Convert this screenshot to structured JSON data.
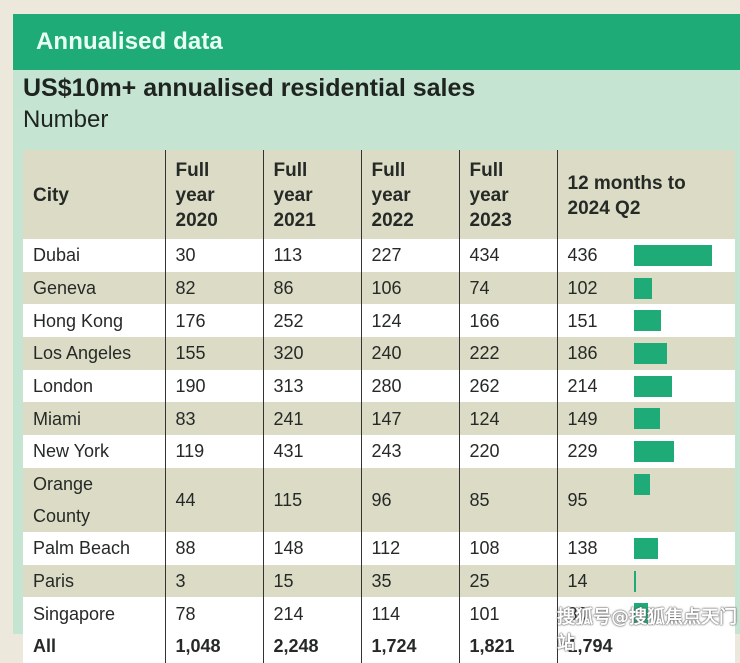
{
  "banner": {
    "title": "Annualised data"
  },
  "colors": {
    "accent": "#1fab78",
    "panel": "#c6e4d2",
    "header_row": "#dcdcc6"
  },
  "watermark": "搜狐号@搜狐焦点天门站",
  "chart_data": {
    "type": "table",
    "title": "US$10m+ annualised residential sales",
    "subtitle": "Number",
    "columns": [
      "City",
      "Full year 2020",
      "Full year 2021",
      "Full year 2022",
      "Full year 2023",
      "12 months to 2024 Q2"
    ],
    "header": [
      {
        "line1": "City",
        "line2": ""
      },
      {
        "line1": "Full year",
        "line2": "2020"
      },
      {
        "line1": "Full year",
        "line2": "2021"
      },
      {
        "line1": "Full year",
        "line2": "2022"
      },
      {
        "line1": "Full year",
        "line2": "2023"
      },
      {
        "line1": "12 months to",
        "line2": "2024 Q2"
      }
    ],
    "rows": [
      {
        "city": "Dubai",
        "y2020": "30",
        "y2021": "113",
        "y2022": "227",
        "y2023": "434",
        "q2_2024": "436",
        "bar_value": 436
      },
      {
        "city": "Geneva",
        "y2020": "82",
        "y2021": "86",
        "y2022": "106",
        "y2023": "74",
        "q2_2024": "102",
        "bar_value": 102
      },
      {
        "city": "Hong Kong",
        "y2020": "176",
        "y2021": "252",
        "y2022": "124",
        "y2023": "166",
        "q2_2024": "151",
        "bar_value": 151
      },
      {
        "city": "Los Angeles",
        "y2020": "155",
        "y2021": "320",
        "y2022": "240",
        "y2023": "222",
        "q2_2024": "186",
        "bar_value": 186
      },
      {
        "city": "London",
        "y2020": "190",
        "y2021": "313",
        "y2022": "280",
        "y2023": "262",
        "q2_2024": "214",
        "bar_value": 214
      },
      {
        "city": "Miami",
        "y2020": "83",
        "y2021": "241",
        "y2022": "147",
        "y2023": "124",
        "q2_2024": "149",
        "bar_value": 149
      },
      {
        "city": "New York",
        "y2020": "119",
        "y2021": "431",
        "y2022": "243",
        "y2023": "220",
        "q2_2024": "229",
        "bar_value": 229
      },
      {
        "city": "Orange County",
        "y2020": "44",
        "y2021": "115",
        "y2022": "96",
        "y2023": "85",
        "q2_2024": "95",
        "bar_value": 95
      },
      {
        "city": "Palm Beach",
        "y2020": "88",
        "y2021": "148",
        "y2022": "112",
        "y2023": "108",
        "q2_2024": "138",
        "bar_value": 138
      },
      {
        "city": "Paris",
        "y2020": "3",
        "y2021": "15",
        "y2022": "35",
        "y2023": "25",
        "q2_2024": "14",
        "bar_value": 14
      },
      {
        "city": "Singapore",
        "y2020": "78",
        "y2021": "214",
        "y2022": "114",
        "y2023": "101",
        "q2_2024": "80",
        "bar_value": 80
      }
    ],
    "total": {
      "city": "All",
      "y2020": "1,048",
      "y2021": "2,248",
      "y2022": "1,724",
      "y2023": "1,821",
      "q2_2024": "1,794"
    },
    "bar_max": 436
  }
}
